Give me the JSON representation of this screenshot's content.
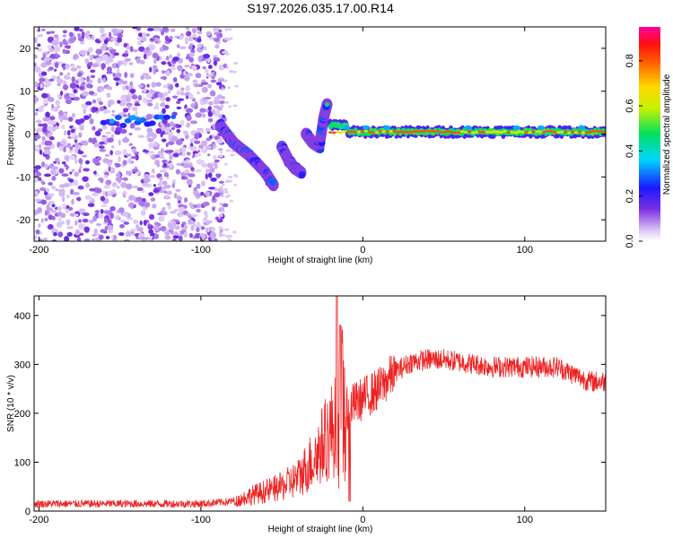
{
  "title": "S197.2026.035.17.00.R14",
  "chart_data": [
    {
      "type": "heatmap",
      "panel": "spectrogram",
      "xlabel": "Height of straight line (km)",
      "ylabel": "Frequency (Hz)",
      "xlim": [
        -203,
        150
      ],
      "ylim": [
        -25,
        25
      ],
      "xticks": [
        -200,
        -100,
        0,
        100
      ],
      "yticks": [
        -20,
        -10,
        0,
        10,
        20
      ],
      "colorbar": {
        "label": "Normalized spectral amplitude",
        "range": [
          0,
          0.95
        ],
        "ticks": [
          0.0,
          0.2,
          0.4,
          0.6,
          0.8
        ]
      },
      "features": [
        {
          "name": "noise",
          "x_range": [
            -203,
            -85
          ],
          "freq_range": [
            -25,
            25
          ],
          "amplitude": 0.1
        },
        {
          "name": "early-trace",
          "x_range": [
            -160,
            -120
          ],
          "freq_center": 3,
          "amplitude": 0.3
        },
        {
          "name": "doppler-descent",
          "points": [
            [
              -88,
              2
            ],
            [
              -80,
              -2
            ],
            [
              -70,
              -5
            ],
            [
              -60,
              -9
            ],
            [
              -55,
              -12
            ]
          ],
          "amplitude": 0.35
        },
        {
          "name": "doppler-burst-2",
          "points": [
            [
              -50,
              -3
            ],
            [
              -46,
              -6
            ],
            [
              -42,
              -8
            ],
            [
              -38,
              -9
            ]
          ],
          "amplitude": 0.3
        },
        {
          "name": "doppler-burst-3",
          "points": [
            [
              -35,
              0
            ],
            [
              -31,
              -2
            ],
            [
              -27,
              -3
            ],
            [
              -24,
              4
            ],
            [
              -22,
              7
            ]
          ],
          "amplitude": 0.3
        },
        {
          "name": "carrier",
          "x_range": [
            -20,
            150
          ],
          "freq_center": 0.5,
          "amplitude": 0.85
        }
      ]
    },
    {
      "type": "line",
      "panel": "snr",
      "xlabel": "Height of straight line (km)",
      "ylabel": "SNR (10 * v/v)",
      "xlim": [
        -203,
        150
      ],
      "ylim": [
        0,
        440
      ],
      "xticks": [
        -200,
        -100,
        0,
        100
      ],
      "yticks": [
        0,
        100,
        200,
        300,
        400
      ],
      "color": "#ee2222",
      "series": [
        {
          "name": "SNR",
          "x": [
            -203,
            -150,
            -100,
            -80,
            -70,
            -60,
            -50,
            -40,
            -30,
            -20,
            -15,
            -10,
            0,
            10,
            20,
            30,
            40,
            50,
            60,
            80,
            100,
            120,
            130,
            140,
            150
          ],
          "values": [
            15,
            15,
            15,
            20,
            35,
            45,
            55,
            75,
            120,
            180,
            200,
            210,
            230,
            250,
            285,
            305,
            310,
            310,
            305,
            295,
            295,
            295,
            280,
            265,
            265
          ]
        }
      ]
    }
  ]
}
